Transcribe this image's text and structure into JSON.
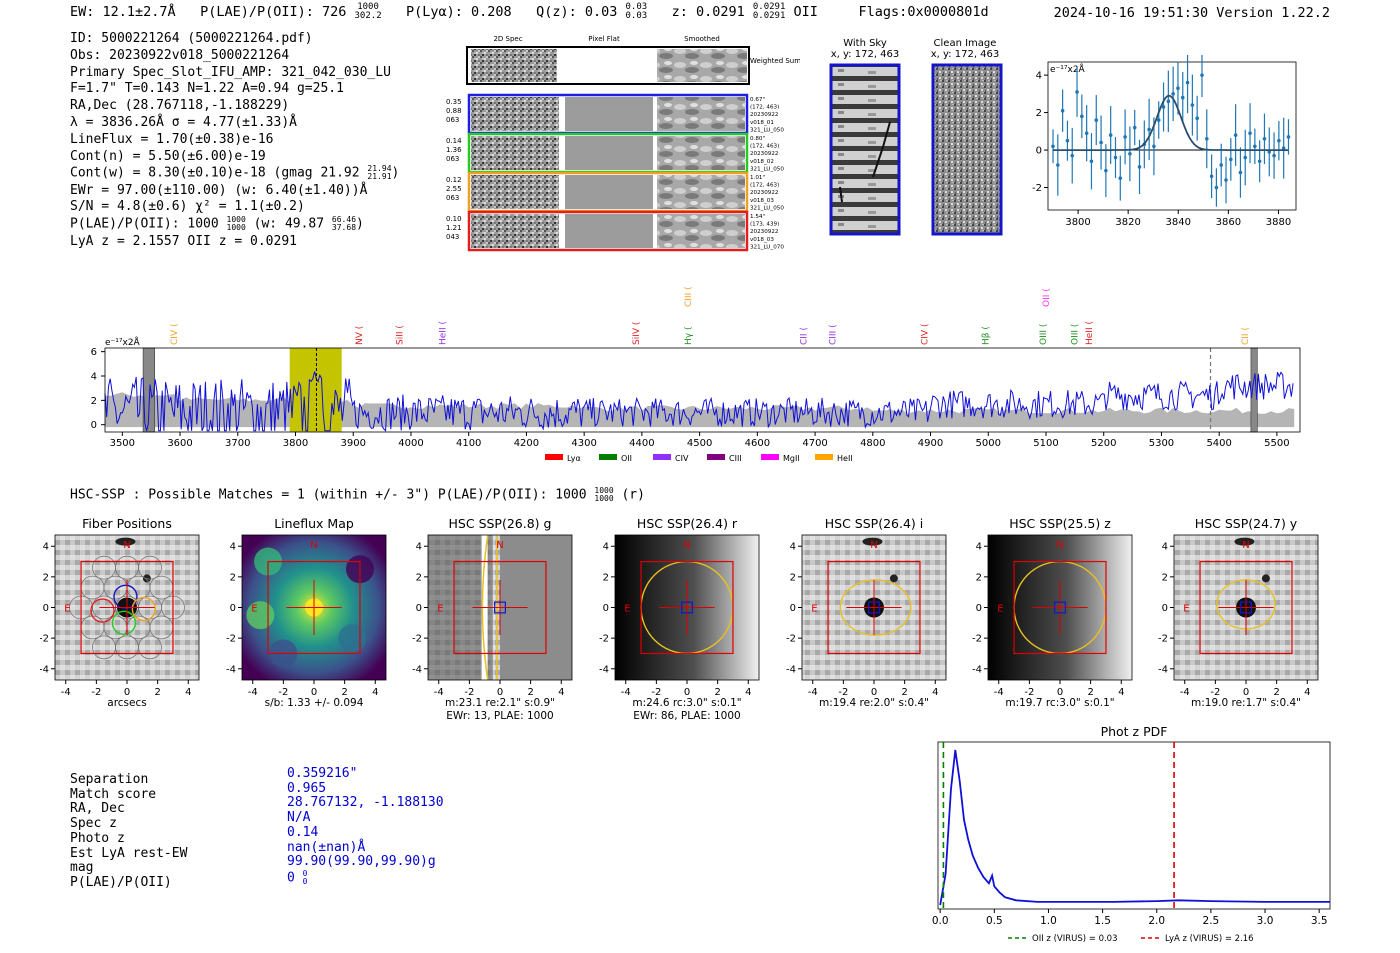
{
  "header": {
    "ew": "EW: 12.1±2.7Å",
    "plae_label": "P(LAE)/P(OII): 726",
    "plae_hi": "1000",
    "plae_lo": "302.2",
    "plya": "P(Lyα): 0.208",
    "qz": "Q(z): 0.03",
    "qz_hi": "0.03",
    "qz_lo": "0.03",
    "z": "z: 0.0291",
    "z_hi": "0.0291",
    "z_lo": "0.0291",
    "z_line": "OII",
    "flags": "Flags:0x0000801d",
    "datestamp": "2024-10-16 19:51:30  Version 1.22.2"
  },
  "summary": {
    "lines": [
      "ID: 5000221264 (5000221264.pdf)",
      "Obs: 20230922v018_5000221264",
      "Primary Spec_Slot_IFU_AMP: 321_042_030_LU",
      "F=1.7\"  T=0.143  N=1.22  A=0.94  g=25.1",
      "RA,Dec (28.767118,-1.188229)",
      "λ = 3836.26Å  σ = 4.77(±1.33)Å",
      "LineFlux = 1.70(±0.38)e-16",
      "Cont(n) = 5.50(±6.00)e-19"
    ],
    "contw": "Cont(w) = 8.30(±0.10)e-18 (gmag 21.92",
    "contw_hi": "21.94",
    "contw_lo": "21.91",
    "ewr": "EWr = 97.00(±110.00) (w: 6.40(±1.40))Å",
    "sn": "S/N = 4.8(±0.6)  χ² = 1.1(±0.2)",
    "plae": "P(LAE)/P(OII): 1000",
    "plae_hi": "1000",
    "plae_lo": "1000",
    "plae_w": "(w: 49.87",
    "plae_w_hi": "66.46",
    "plae_w_lo": "37.68",
    "lyaz": "LyA z = 2.1557  OII z = 0.0291"
  },
  "spec2d": {
    "col_titles": [
      "2D Spec",
      "Pixel Flat",
      "Smoothed"
    ],
    "weighted_label": "Weighted Sum",
    "rows": [
      {
        "color": "#1f1fe0",
        "left": [
          "0.35",
          "0.88",
          "063"
        ],
        "right": [
          "0.67\"",
          "(172, 463)",
          "20230922",
          "v018_01",
          "321_LU_050"
        ]
      },
      {
        "color": "#22cc22",
        "left": [
          "0.14",
          "1.36",
          "063"
        ],
        "right": [
          "0.80\"",
          "(172, 463)",
          "20230922",
          "v018_02",
          "321_LU_050"
        ]
      },
      {
        "color": "#f0a020",
        "left": [
          "0.12",
          "2.55",
          "063"
        ],
        "right": [
          "1.01\"",
          "(172, 463)",
          "20230922",
          "v018_03",
          "321_LU_050"
        ]
      },
      {
        "color": "#e02020",
        "left": [
          "0.10",
          "1.21",
          "043"
        ],
        "right": [
          "1.54\"",
          "(173, 439)",
          "20230922",
          "v018_03",
          "321_LU_070"
        ]
      }
    ]
  },
  "sky": {
    "with_sky_title": "With Sky",
    "with_sky_coord": "x, y: 172, 463",
    "clean_title": "Clean Image",
    "clean_coord": "x, y: 172, 463"
  },
  "chart_data": [
    {
      "type": "line",
      "title": "",
      "ylabel": "e⁻¹⁷x2Å",
      "xlim": [
        3788,
        3887
      ],
      "ylim": [
        -3.2,
        4.7
      ],
      "x_ticks": [
        3800,
        3820,
        3840,
        3860,
        3880
      ],
      "y_ticks": [
        -2,
        0,
        2,
        4
      ],
      "fit_gaussian": {
        "mu": 3836.3,
        "sigma": 4.77,
        "amp": 2.9
      },
      "points_y": [
        0.2,
        -0.8,
        2.1,
        0.5,
        -0.3,
        3.1,
        1.8,
        0.9,
        -0.6,
        1.6,
        0.4,
        -1.1,
        0.8,
        -0.4,
        -1.5,
        0.7,
        -0.2,
        1.2,
        -0.9,
        0.3,
        1.1,
        0.2,
        1.6,
        2.3,
        2.6,
        3.0,
        3.3,
        2.8,
        3.6,
        2.4,
        1.7,
        4.0,
        0.6,
        -1.4,
        -2.0,
        -0.8,
        -1.6,
        -0.5,
        0.8,
        -1.2,
        -0.4,
        0.9,
        0.2,
        -0.6,
        0.6,
        -0.1,
        -0.3,
        0.5,
        0.1,
        0.7
      ]
    },
    {
      "type": "line",
      "title": "",
      "ylabel": "e⁻¹⁷x2Å",
      "xlim": [
        3470,
        5540
      ],
      "ylim": [
        -0.6,
        6.3
      ],
      "x_ticks": [
        3500,
        3600,
        3700,
        3800,
        3900,
        4000,
        4100,
        4200,
        4300,
        4400,
        4500,
        4600,
        4700,
        4800,
        4900,
        5000,
        5100,
        5200,
        5300,
        5400,
        5500
      ],
      "y_ticks": [
        0,
        2,
        4,
        6
      ],
      "highlight_band": [
        3790,
        3880
      ],
      "line_marker": 3836.26,
      "line_labels": [
        {
          "label": "CIV",
          "x": 3595,
          "color": "#f0a020"
        },
        {
          "label": "NV",
          "x": 3915,
          "color": "#e02020"
        },
        {
          "label": "SiII",
          "x": 3985,
          "color": "#e02020"
        },
        {
          "label": "HeII",
          "x": 4060,
          "color": "#9030e0"
        },
        {
          "label": "SiIV",
          "x": 4395,
          "color": "#e02020"
        },
        {
          "label": "CIII",
          "x": 4485,
          "color": "#f0a020"
        },
        {
          "label": "Hγ",
          "x": 4485,
          "color": "#209020"
        },
        {
          "label": "CII",
          "x": 4685,
          "color": "#9030e0"
        },
        {
          "label": "CIII",
          "x": 4735,
          "color": "#9030e0"
        },
        {
          "label": "CIV",
          "x": 4895,
          "color": "#e02020"
        },
        {
          "label": "Hβ",
          "x": 5000,
          "color": "#209020"
        },
        {
          "label": "OIII",
          "x": 5100,
          "color": "#209020"
        },
        {
          "label": "OII",
          "x": 5105,
          "color": "#ff30ff"
        },
        {
          "label": "OIII",
          "x": 5155,
          "color": "#209020"
        },
        {
          "label": "HeII",
          "x": 5180,
          "color": "#e02020"
        },
        {
          "label": "CII",
          "x": 5450,
          "color": "#f0a020"
        }
      ],
      "legend": [
        {
          "label": "Lyα",
          "color": "#ff0000"
        },
        {
          "label": "OII",
          "color": "#008000"
        },
        {
          "label": "CIV",
          "color": "#9030ff"
        },
        {
          "label": "CIII",
          "color": "#800080"
        },
        {
          "label": "MgII",
          "color": "#ff00ff"
        },
        {
          "label": "HeII",
          "color": "#ffa500"
        }
      ]
    },
    {
      "type": "line",
      "title": "Phot z PDF",
      "xlim": [
        -0.02,
        3.6
      ],
      "x_ticks": [
        0.0,
        0.5,
        1.0,
        1.5,
        2.0,
        2.5,
        3.0,
        3.5
      ],
      "x": [
        0.0,
        0.05,
        0.1,
        0.14,
        0.18,
        0.22,
        0.26,
        0.3,
        0.35,
        0.4,
        0.45,
        0.48,
        0.5,
        0.55,
        0.6,
        0.7,
        0.9,
        1.2,
        1.6,
        2.0,
        2.2,
        2.5,
        3.0,
        3.6
      ],
      "y": [
        0.0,
        0.2,
        0.75,
        1.0,
        0.8,
        0.55,
        0.42,
        0.32,
        0.24,
        0.18,
        0.14,
        0.19,
        0.12,
        0.08,
        0.05,
        0.03,
        0.02,
        0.02,
        0.02,
        0.025,
        0.03,
        0.025,
        0.02,
        0.02
      ],
      "vlines": [
        {
          "x": 0.03,
          "color": "#008000",
          "label": "OII z (VIRUS) = 0.03"
        },
        {
          "x": 2.16,
          "color": "#e00000",
          "label": "LyA z (VIRUS) = 2.16"
        }
      ]
    }
  ],
  "hsc": {
    "header": "HSC-SSP : Possible Matches = 1 (within +/- 3\")  P(LAE)/P(OII): 1000",
    "header_hi": "1000",
    "header_lo": "1000",
    "header_tail": "(r)",
    "ticks": [
      "-4",
      "-2",
      "0",
      "2",
      "4"
    ],
    "north": "N",
    "east": "E",
    "panels": [
      {
        "title": "Fiber Positions",
        "caption1": "arcsecs",
        "caption2": ""
      },
      {
        "title": "Lineflux Map",
        "caption1": "s/b: 1.33 +/- 0.094",
        "caption2": ""
      },
      {
        "title": "HSC SSP(26.8) g",
        "caption1": "m:23.1  re:2.1\"  s:0.9\"",
        "caption2": "EWr: 13, PLAE: 1000"
      },
      {
        "title": "HSC SSP(26.4) r",
        "caption1": "m:24.6 rc:3.0\"  s:0.1\"",
        "caption2": "EWr: 86, PLAE: 1000"
      },
      {
        "title": "HSC SSP(26.4) i",
        "caption1": "m:19.4  re:2.0\"  s:0.4\"",
        "caption2": ""
      },
      {
        "title": "HSC SSP(25.5) z",
        "caption1": "m:19.7 rc:3.0\"  s:0.1\"",
        "caption2": ""
      },
      {
        "title": "HSC SSP(24.7) y",
        "caption1": "m:19.0  re:1.7\"  s:0.4\"",
        "caption2": ""
      }
    ]
  },
  "match": {
    "labels": [
      "Separation",
      "Match score",
      "RA, Dec",
      "Spec z",
      "Photo z",
      "Est LyA rest-EW",
      "mag",
      "P(LAE)/P(OII)"
    ],
    "values": [
      "0.359216\"",
      "0.965",
      "28.767132, -1.188130",
      "N/A",
      "0.14",
      "nan(±nan)Å",
      "99.90(99.90,99.90)g",
      "0"
    ],
    "plae_hi": "0",
    "plae_lo": "0"
  }
}
